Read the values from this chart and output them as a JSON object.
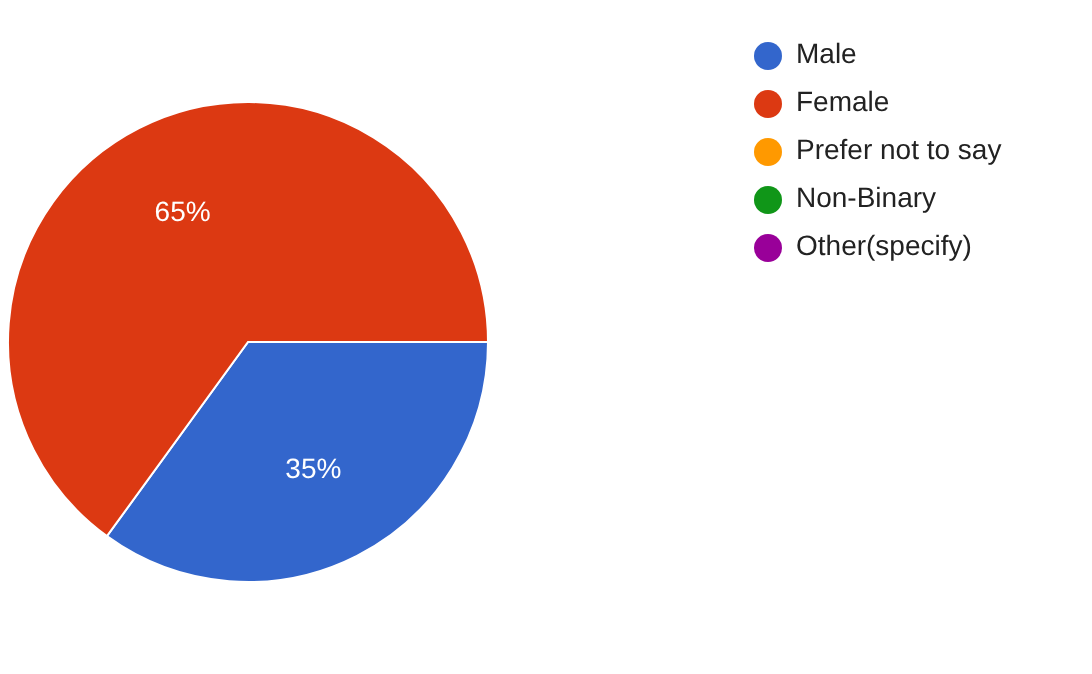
{
  "chart_data": {
    "type": "pie",
    "categories": [
      "Male",
      "Female",
      "Prefer not to say",
      "Non-Binary",
      "Other(specify)"
    ],
    "values": [
      35,
      65,
      0,
      0,
      0
    ],
    "colors": [
      "#3366cc",
      "#dc3912",
      "#ff9900",
      "#109618",
      "#990099"
    ],
    "value_labels": [
      "35%",
      "65%",
      null,
      null,
      null
    ],
    "legend": "top right"
  }
}
